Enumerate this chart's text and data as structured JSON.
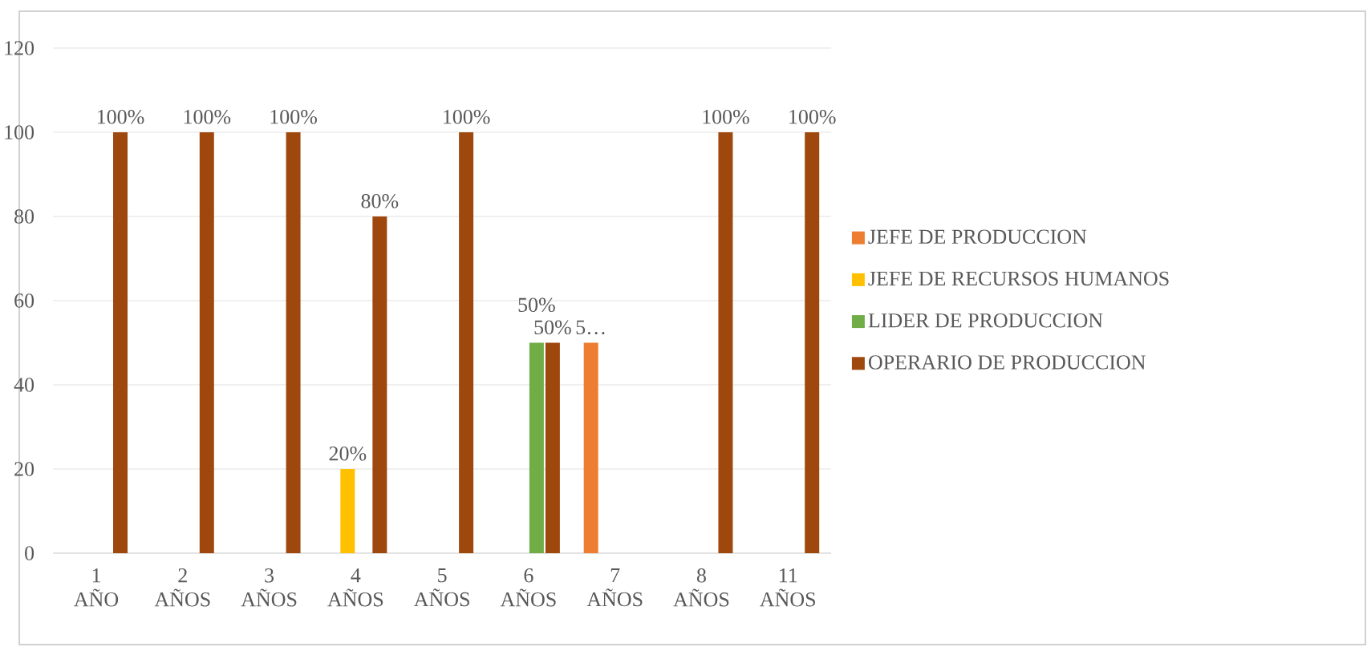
{
  "chart_data": {
    "type": "bar",
    "categories": [
      "1 AÑO",
      "2 AÑOS",
      "3 AÑOS",
      "4 AÑOS",
      "5 AÑOS",
      "6 AÑOS",
      "7 AÑOS",
      "8 AÑOS",
      "11 AÑOS"
    ],
    "series": [
      {
        "name": "JEFE DE PRODUCCION",
        "color": "#ed7d31",
        "values": [
          null,
          null,
          null,
          null,
          null,
          null,
          50,
          null,
          null
        ],
        "value_labels": [
          null,
          null,
          null,
          null,
          null,
          null,
          "5…",
          null,
          null
        ]
      },
      {
        "name": "JEFE DE RECURSOS HUMANOS",
        "color": "#ffc000",
        "values": [
          null,
          null,
          null,
          20,
          null,
          null,
          null,
          null,
          null
        ],
        "value_labels": [
          null,
          null,
          null,
          "20%",
          null,
          null,
          null,
          null,
          null
        ]
      },
      {
        "name": "LIDER DE PRODUCCION",
        "color": "#70ad47",
        "values": [
          null,
          null,
          null,
          null,
          null,
          50,
          null,
          null,
          null
        ],
        "value_labels": [
          null,
          null,
          null,
          null,
          null,
          "50%",
          null,
          null,
          null
        ]
      },
      {
        "name": "OPERARIO DE PRODUCCION",
        "color": "#9e480e",
        "values": [
          100,
          100,
          100,
          80,
          100,
          50,
          null,
          100,
          100
        ],
        "value_labels": [
          "100%",
          "100%",
          "100%",
          "80%",
          "100%",
          "50%",
          null,
          "100%",
          "100%"
        ]
      }
    ],
    "ylim": [
      0,
      120
    ],
    "yticks": [
      0,
      20,
      40,
      60,
      80,
      100,
      120
    ],
    "grid": "y",
    "legend": "right"
  }
}
